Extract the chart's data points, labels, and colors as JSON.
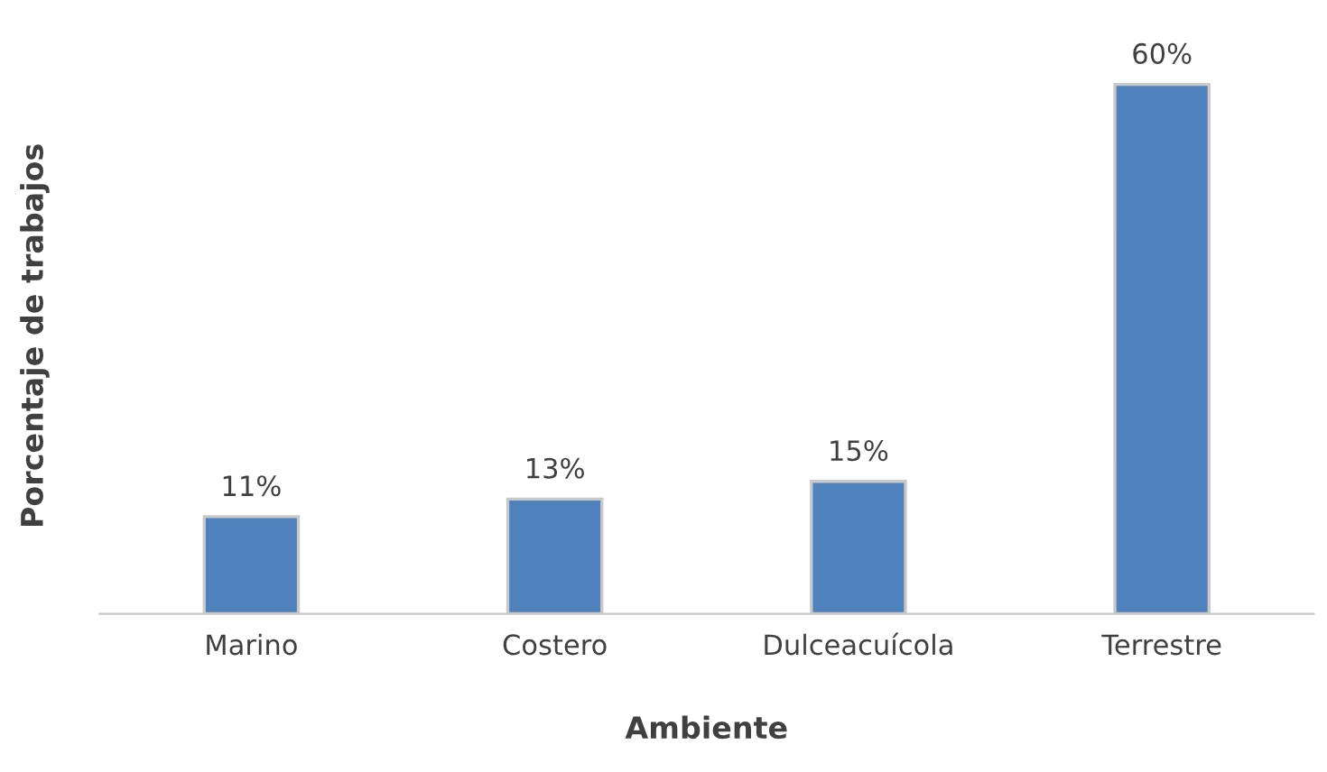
{
  "chart_data": {
    "type": "bar",
    "xlabel": "Ambiente",
    "ylabel": "Porcentaje de trabajos",
    "categories": [
      "Marino",
      "Costero",
      "Dulceacuícola",
      "Terrestre"
    ],
    "values": [
      11,
      13,
      15,
      60
    ],
    "value_labels": [
      "11%",
      "13%",
      "15%",
      "60%"
    ],
    "color": "#4f81bd"
  }
}
